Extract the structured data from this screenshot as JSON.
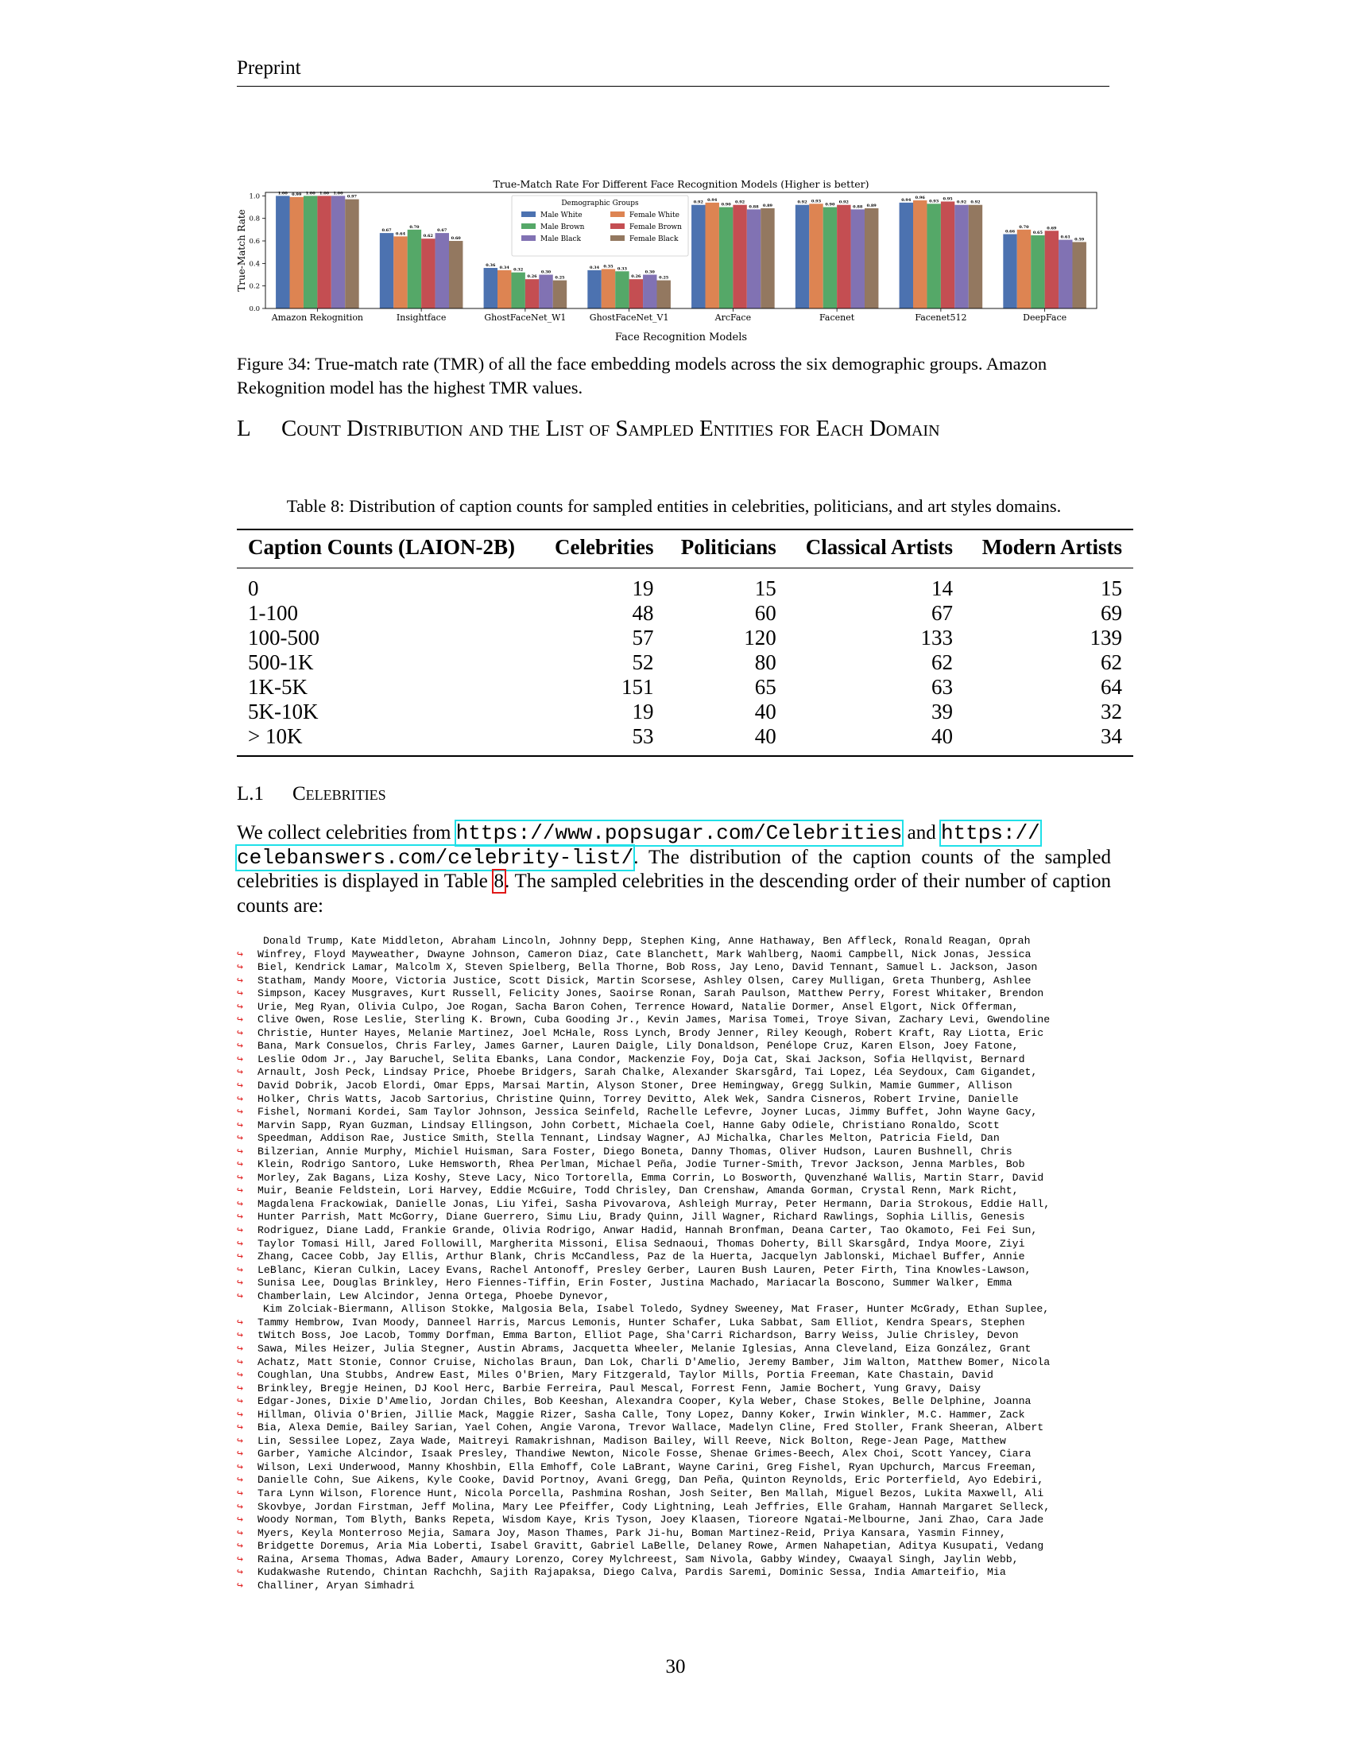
{
  "header": "Preprint",
  "chart_data": {
    "type": "bar",
    "title": "True-Match Rate For Different Face Recognition Models (Higher is better)",
    "xlabel": "Face Recognition Models",
    "ylabel": "True-Match Rate",
    "ylim": [
      0,
      1.0
    ],
    "yticks": [
      "0.0",
      "0.2",
      "0.4",
      "0.6",
      "0.8",
      "1.0"
    ],
    "legend_title": "Demographic Groups",
    "legend_position": "top-center",
    "categories": [
      "Amazon Rekognition",
      "Insightface",
      "GhostFaceNet_W1",
      "GhostFaceNet_V1",
      "ArcFace",
      "Facenet",
      "Facenet512",
      "DeepFace"
    ],
    "series": [
      {
        "name": "Male White",
        "color": "#4c72b0",
        "values": [
          1.0,
          0.67,
          0.36,
          0.34,
          0.92,
          0.92,
          0.94,
          0.66
        ],
        "labels": [
          "1.00",
          "0.67",
          "0.36",
          "0.34",
          "0.92",
          "0.92",
          "0.94",
          "0.66"
        ]
      },
      {
        "name": "Female White",
        "color": "#dd8452",
        "values": [
          0.99,
          0.64,
          0.34,
          0.35,
          0.94,
          0.93,
          0.96,
          0.7
        ],
        "labels": [
          "0.99",
          "0.64",
          "0.34",
          "0.35",
          "0.94",
          "0.93",
          "0.96",
          "0.70"
        ]
      },
      {
        "name": "Male Brown",
        "color": "#55a868",
        "values": [
          1.0,
          0.7,
          0.32,
          0.33,
          0.9,
          0.9,
          0.93,
          0.65
        ],
        "labels": [
          "1.00",
          "0.70",
          "0.32",
          "0.33",
          "0.90",
          "0.90",
          "0.93",
          "0.65"
        ]
      },
      {
        "name": "Female Brown",
        "color": "#c44e52",
        "values": [
          1.0,
          0.62,
          0.26,
          0.26,
          0.92,
          0.92,
          0.95,
          0.69
        ],
        "labels": [
          "1.00",
          "0.62",
          "0.26",
          "0.26",
          "0.92",
          "0.92",
          "0.95",
          "0.69"
        ]
      },
      {
        "name": "Male Black",
        "color": "#8172b3",
        "values": [
          1.0,
          0.67,
          0.3,
          0.3,
          0.88,
          0.88,
          0.92,
          0.61
        ],
        "labels": [
          "1.00",
          "0.67",
          "0.30",
          "0.30",
          "0.88",
          "0.88",
          "0.92",
          "0.61"
        ]
      },
      {
        "name": "Female Black",
        "color": "#937860",
        "values": [
          0.97,
          0.6,
          0.25,
          0.25,
          0.89,
          0.89,
          0.92,
          0.59
        ],
        "labels": [
          "0.97",
          "0.60",
          "0.25",
          "0.25",
          "0.89",
          "0.89",
          "0.92",
          "0.59"
        ]
      }
    ]
  },
  "figure_caption": "Figure 34: True-match rate (TMR) of all the face embedding models across the six demographic groups. Amazon Rekognition model has the highest TMR values.",
  "section": {
    "number": "L",
    "title": "Count Distribution and the List of Sampled Entities for Each Domain"
  },
  "table": {
    "caption": "Table 8: Distribution of caption counts for sampled entities in celebrities, politicians, and art styles domains.",
    "headers": [
      "Caption Counts (LAION-2B)",
      "Celebrities",
      "Politicians",
      "Classical Artists",
      "Modern Artists"
    ],
    "rows": [
      [
        "0",
        "19",
        "15",
        "14",
        "15"
      ],
      [
        "1-100",
        "48",
        "60",
        "67",
        "69"
      ],
      [
        "100-500",
        "57",
        "120",
        "133",
        "139"
      ],
      [
        "500-1K",
        "52",
        "80",
        "62",
        "62"
      ],
      [
        "1K-5K",
        "151",
        "65",
        "63",
        "64"
      ],
      [
        "5K-10K",
        "19",
        "40",
        "39",
        "32"
      ],
      [
        "> 10K",
        "53",
        "40",
        "40",
        "34"
      ]
    ]
  },
  "subsection": {
    "number": "L.1",
    "title": "Celebrities"
  },
  "paragraph": {
    "t1": "We collect celebrities from ",
    "url1": "https://www.popsugar.com/Celebrities",
    "t2": " and ",
    "url2a": "https://",
    "url2b": "celebanswers.com/celebrity-list/",
    "t3": ". The distribution of the caption counts of the sampled celebrities is displayed in Table ",
    "ref": "8",
    "t4": ". The sampled celebrities in the descending order of their number of caption counts are:"
  },
  "celebrity_lines": [
    "Donald Trump, Kate Middleton, Abraham Lincoln, Johnny Depp, Stephen King, Anne Hathaway, Ben Affleck, Ronald Reagan, Oprah",
    "Winfrey, Floyd Mayweather, Dwayne Johnson, Cameron Diaz, Cate Blanchett, Mark Wahlberg, Naomi Campbell, Nick Jonas, Jessica",
    "Biel, Kendrick Lamar, Malcolm X, Steven Spielberg, Bella Thorne, Bob Ross, Jay Leno, David Tennant, Samuel L. Jackson, Jason",
    "Statham, Mandy Moore, Victoria Justice, Scott Disick, Martin Scorsese, Ashley Olsen, Carey Mulligan, Greta Thunberg, Ashlee",
    "Simpson, Kacey Musgraves, Kurt Russell, Felicity Jones, Saoirse Ronan, Sarah Paulson, Matthew Perry, Forest Whitaker, Brendon",
    "Urie, Meg Ryan, Olivia Culpo, Joe Rogan, Sacha Baron Cohen, Terrence Howard, Natalie Dormer, Ansel Elgort, Nick Offerman,",
    "Clive Owen, Rose Leslie, Sterling K. Brown, Cuba Gooding Jr., Kevin James, Marisa Tomei, Troye Sivan, Zachary Levi, Gwendoline",
    "Christie, Hunter Hayes, Melanie Martinez, Joel McHale, Ross Lynch, Brody Jenner, Riley Keough, Robert Kraft, Ray Liotta, Eric",
    "Bana, Mark Consuelos, Chris Farley, James Garner, Lauren Daigle, Lily Donaldson, Penélope Cruz, Karen Elson, Joey Fatone,",
    "Leslie Odom Jr., Jay Baruchel, Selita Ebanks, Lana Condor, Mackenzie Foy, Doja Cat, Skai Jackson, Sofia Hellqvist, Bernard",
    "Arnault, Josh Peck, Lindsay Price, Phoebe Bridgers, Sarah Chalke, Alexander Skarsgård, Tai Lopez, Léa Seydoux, Cam Gigandet,",
    "David Dobrik, Jacob Elordi, Omar Epps, Marsai Martin, Alyson Stoner, Dree Hemingway, Gregg Sulkin, Mamie Gummer, Allison",
    "Holker, Chris Watts, Jacob Sartorius, Christine Quinn, Torrey Devitto, Alek Wek, Sandra Cisneros, Robert Irvine, Danielle",
    "Fishel, Normani Kordei, Sam Taylor Johnson, Jessica Seinfeld, Rachelle Lefevre, Joyner Lucas, Jimmy Buffet, John Wayne Gacy,",
    "Marvin Sapp, Ryan Guzman, Lindsay Ellingson, John Corbett, Michaela Coel, Hanne Gaby Odiele, Christiano Ronaldo, Scott",
    "Speedman, Addison Rae, Justice Smith, Stella Tennant, Lindsay Wagner, AJ Michalka, Charles Melton, Patricia Field, Dan",
    "Bilzerian, Annie Murphy, Michiel Huisman, Sara Foster, Diego Boneta, Danny Thomas, Oliver Hudson, Lauren Bushnell, Chris",
    "Klein, Rodrigo Santoro, Luke Hemsworth, Rhea Perlman, Michael Peña, Jodie Turner-Smith, Trevor Jackson, Jenna Marbles, Bob",
    "Morley, Zak Bagans, Liza Koshy, Steve Lacy, Nico Tortorella, Emma Corrin, Lo Bosworth, Quvenzhané Wallis, Martin Starr, David",
    "Muir, Beanie Feldstein, Lori Harvey, Eddie McGuire, Todd Chrisley, Dan Crenshaw, Amanda Gorman, Crystal Renn, Mark Richt,",
    "Magdalena Frackowiak, Danielle Jonas, Liu Yifei, Sasha Pivovarova, Ashleigh Murray, Peter Hermann, Daria Strokous, Eddie Hall,",
    "Hunter Parrish, Matt McGorry, Diane Guerrero, Simu Liu, Brady Quinn, Jill Wagner, Richard Rawlings, Sophia Lillis, Genesis",
    "Rodriguez, Diane Ladd, Frankie Grande, Olivia Rodrigo, Anwar Hadid, Hannah Bronfman, Deana Carter, Tao Okamoto, Fei Fei Sun,",
    "Taylor Tomasi Hill, Jared Followill, Margherita Missoni, Elisa Sednaoui, Thomas Doherty, Bill Skarsgård, Indya Moore, Ziyi",
    "Zhang, Cacee Cobb, Jay Ellis, Arthur Blank, Chris McCandless, Paz de la Huerta, Jacquelyn Jablonski, Michael Buffer, Annie",
    "LeBlanc, Kieran Culkin, Lacey Evans, Rachel Antonoff, Presley Gerber, Lauren Bush Lauren, Peter Firth, Tina Knowles-Lawson,",
    "Sunisa Lee, Douglas Brinkley, Hero Fiennes-Tiffin, Erin Foster, Justina Machado, Mariacarla Boscono, Summer Walker, Emma",
    "Chamberlain, Lew Alcindor, Jenna Ortega, Phoebe Dynevor,",
    "Kim Zolciak-Biermann, Allison Stokke, Malgosia Bela, Isabel Toledo, Sydney Sweeney, Mat Fraser, Hunter McGrady, Ethan Suplee,",
    "Tammy Hembrow, Ivan Moody, Danneel Harris, Marcus Lemonis, Hunter Schafer, Luka Sabbat, Sam Elliot, Kendra Spears, Stephen",
    "tWitch Boss, Joe Lacob, Tommy Dorfman, Emma Barton, Elliot Page, Sha'Carri Richardson, Barry Weiss, Julie Chrisley, Devon",
    "Sawa, Miles Heizer, Julia Stegner, Austin Abrams, Jacquetta Wheeler, Melanie Iglesias, Anna Cleveland, Eiza González, Grant",
    "Achatz, Matt Stonie, Connor Cruise, Nicholas Braun, Dan Lok, Charli D'Amelio, Jeremy Bamber, Jim Walton, Matthew Bomer, Nicola",
    "Coughlan, Una Stubbs, Andrew East, Miles O'Brien, Mary Fitzgerald, Taylor Mills, Portia Freeman, Kate Chastain, David",
    "Brinkley, Bregje Heinen, DJ Kool Herc, Barbie Ferreira, Paul Mescal, Forrest Fenn, Jamie Bochert, Yung Gravy, Daisy",
    "Edgar-Jones, Dixie D'Amelio, Jordan Chiles, Bob Keeshan, Alexandra Cooper, Kyla Weber, Chase Stokes, Belle Delphine, Joanna",
    "Hillman, Olivia O'Brien, Jillie Mack, Maggie Rizer, Sasha Calle, Tony Lopez, Danny Koker, Irwin Winkler, M.C. Hammer, Zack",
    "Bia, Alexa Demie, Bailey Sarian, Yael Cohen, Angie Varona, Trevor Wallace, Madelyn Cline, Fred Stoller, Frank Sheeran, Albert",
    "Lin, Sessilee Lopez, Zaya Wade, Maitreyi Ramakrishnan, Madison Bailey, Will Reeve, Nick Bolton, Rege-Jean Page, Matthew",
    "Garber, Yamiche Alcindor, Isaak Presley, Thandiwe Newton, Nicole Fosse, Shenae Grimes-Beech, Alex Choi, Scott Yancey, Ciara",
    "Wilson, Lexi Underwood, Manny Khoshbin, Ella Emhoff, Cole LaBrant, Wayne Carini, Greg Fishel, Ryan Upchurch, Marcus Freeman,",
    "Danielle Cohn, Sue Aikens, Kyle Cooke, David Portnoy, Avani Gregg, Dan Peña, Quinton Reynolds, Eric Porterfield, Ayo Edebiri,",
    "Tara Lynn Wilson, Florence Hunt, Nicola Porcella, Pashmina Roshan, Josh Seiter, Ben Mallah, Miguel Bezos, Lukita Maxwell, Ali",
    "Skovbye, Jordan Firstman, Jeff Molina, Mary Lee Pfeiffer, Cody Lightning, Leah Jeffries, Elle Graham, Hannah Margaret Selleck,",
    "Woody Norman, Tom Blyth, Banks Repeta, Wisdom Kaye, Kris Tyson, Joey Klaasen, Tioreore Ngatai-Melbourne, Jani Zhao, Cara Jade",
    "Myers, Keyla Monterroso Mejia, Samara Joy, Mason Thames, Park Ji-hu, Boman Martinez-Reid, Priya Kansara, Yasmin Finney,",
    "Bridgette Doremus, Aria Mia Loberti, Isabel Gravitt, Gabriel LaBelle, Delaney Rowe, Armen Nahapetian, Aditya Kusupati, Vedang",
    "Raina, Arsema Thomas, Adwa Bader, Amaury Lorenzo, Corey Mylchreest, Sam Nivola, Gabby Windey, Cwaayal Singh, Jaylin Webb,",
    "Kudakwashe Rutendo, Chintan Rachchh, Sajith Rajapaksa, Diego Calva, Pardis Saremi, Dominic Sessa, India Amarteifio, Mia",
    "Challiner, Aryan Simhadri"
  ],
  "continuation_arrow": "↪",
  "page_number": "30"
}
